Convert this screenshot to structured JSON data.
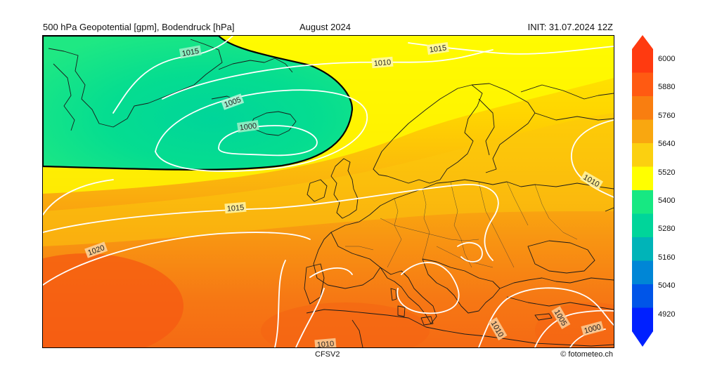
{
  "header": {
    "left": "500 hPa Geopotential [gpm], Bodendruck [hPa]",
    "center": "August 2024",
    "right": "INIT: 31.07.2024 12Z"
  },
  "footer": {
    "model": "CFSV2",
    "credit": "© fotometeo.ch"
  },
  "colorbar": {
    "labels": [
      "6000",
      "5880",
      "5760",
      "5640",
      "5520",
      "5400",
      "5280",
      "5160",
      "5040",
      "4920"
    ],
    "colors": [
      "#ff3a10",
      "#ff5a12",
      "#f97e10",
      "#f9a710",
      "#fbd010",
      "#ffff00",
      "#17e882",
      "#00d59a",
      "#00b4b8",
      "#0086d6",
      "#0055e8",
      "#0020ff"
    ]
  },
  "isobars": {
    "l1000a": "1000",
    "l1005a": "1005",
    "l1010a": "1010",
    "l1010b": "1010",
    "l1010c": "1010",
    "l1015a": "1015",
    "l1015b": "1015",
    "l1015c": "1015",
    "l1020a": "1020",
    "l1005b": "1005",
    "l1000b": "1000",
    "l1010d": "1010"
  }
}
